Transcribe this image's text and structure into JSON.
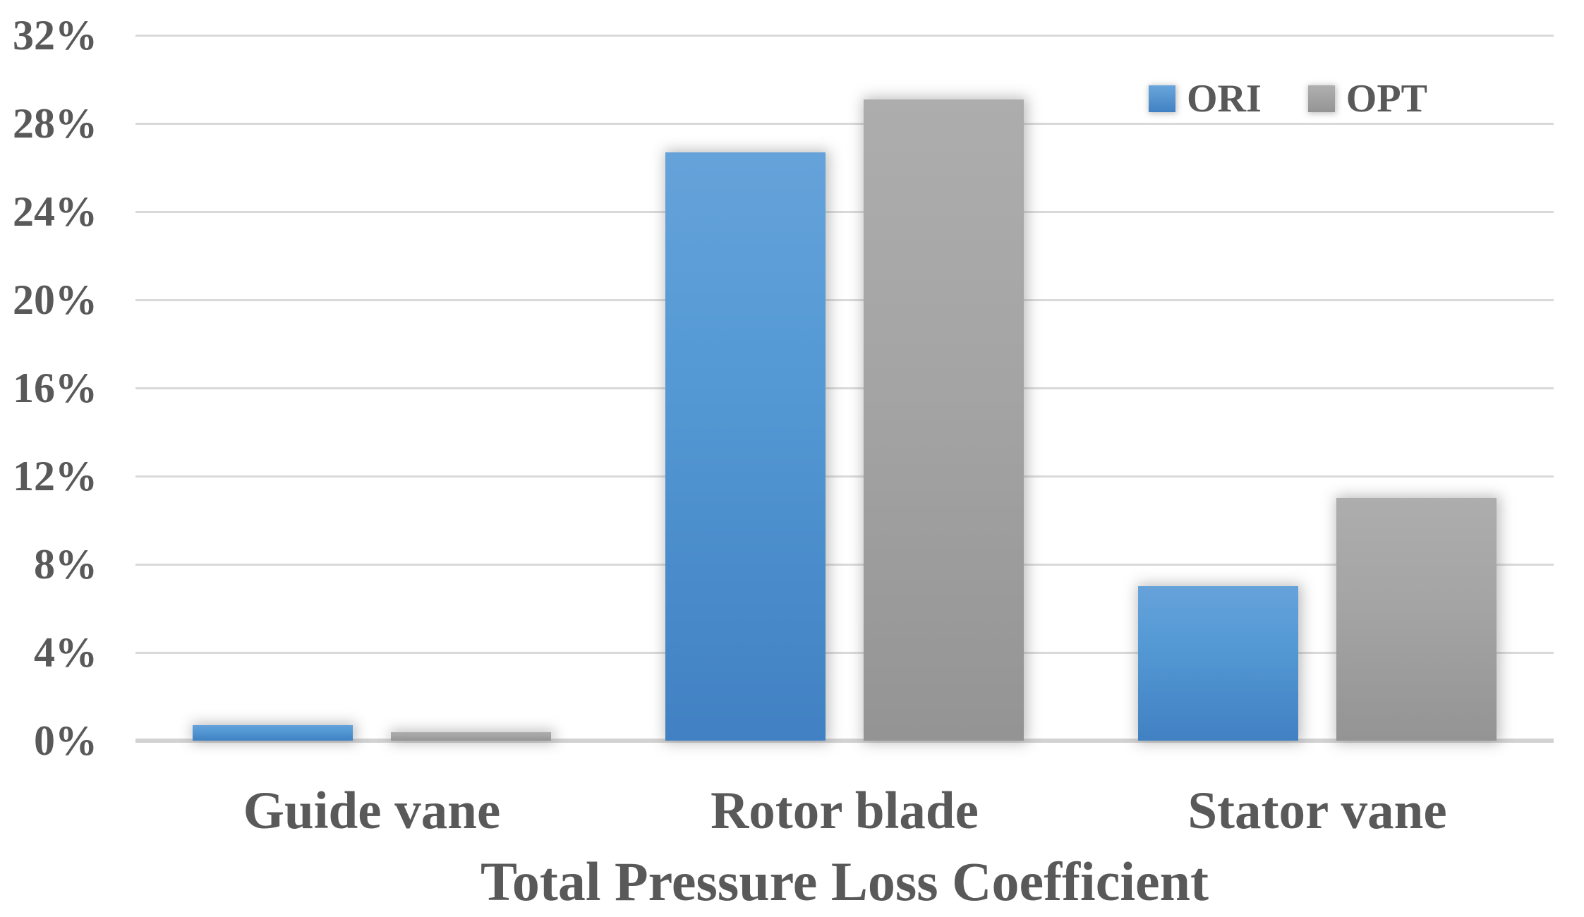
{
  "chart_data": {
    "type": "bar",
    "title": "",
    "categories": [
      "Guide vane",
      "Rotor blade",
      "Stator vane"
    ],
    "series": [
      {
        "name": "ORI",
        "values": [
          0.7,
          26.7,
          7.0
        ]
      },
      {
        "name": "OPT",
        "values": [
          0.4,
          29.1,
          11.0
        ]
      }
    ],
    "unit": "%",
    "xlabel": "Total Pressure Loss Coefficient",
    "ylabel": "",
    "ylim": [
      0,
      32
    ],
    "ytick_step": 4,
    "ytick_labels": [
      "0%",
      "4%",
      "8%",
      "12%",
      "16%",
      "20%",
      "24%",
      "28%",
      "32%"
    ],
    "grid": true,
    "legend": {
      "position": "top-right",
      "entries": [
        "ORI",
        "OPT"
      ]
    },
    "colors": {
      "ori_top": "#66a2da",
      "ori_bottom": "#4181c3",
      "opt_top": "#adadad",
      "opt_bottom": "#949494",
      "gridline": "#d9d9d9",
      "axis_line": "#d2d2d2",
      "text": "#595959",
      "background": "#ffffff"
    }
  }
}
